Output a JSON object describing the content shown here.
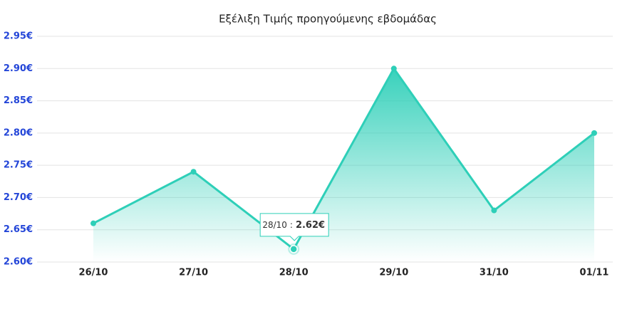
{
  "chart_data": {
    "type": "area",
    "title": "Εξέλιξη Τιμής προηγούμενης εβδομάδας",
    "categories": [
      "26/10",
      "27/10",
      "28/10",
      "29/10",
      "31/10",
      "01/11"
    ],
    "series": [
      {
        "color": "#2ecfb8",
        "values": [
          2.66,
          2.74,
          2.62,
          2.9,
          2.68,
          2.8
        ]
      }
    ],
    "ylim": [
      2.6,
      2.95
    ],
    "yticks": [
      {
        "value": 2.6,
        "label": "2.60€"
      },
      {
        "value": 2.65,
        "label": "2.65€"
      },
      {
        "value": 2.7,
        "label": "2.70€"
      },
      {
        "value": 2.75,
        "label": "2.75€"
      },
      {
        "value": 2.8,
        "label": "2.80€"
      },
      {
        "value": 2.85,
        "label": "2.85€"
      },
      {
        "value": 2.9,
        "label": "2.90€"
      },
      {
        "value": 2.95,
        "label": "2.95€"
      }
    ],
    "grid": true,
    "tooltip": {
      "category": "28/10",
      "separator": ":",
      "value_label": "2.62€"
    }
  }
}
